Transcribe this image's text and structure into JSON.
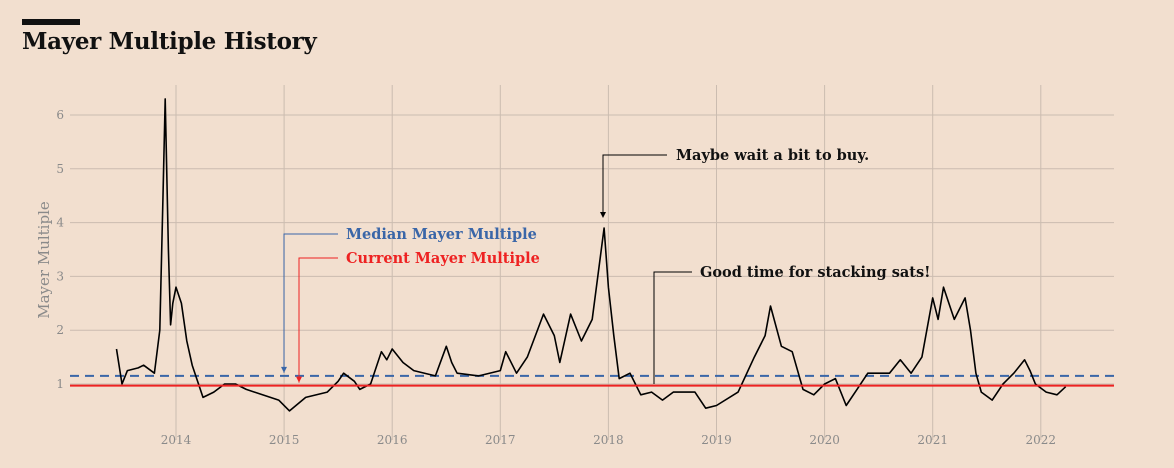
{
  "title": "Mayer Multiple History",
  "chart_data": {
    "type": "line",
    "title": "Mayer Multiple History",
    "xlabel": "",
    "ylabel": "Mayer Multiple",
    "xlim": [
      2013.0,
      2022.65
    ],
    "ylim": [
      0,
      6.5
    ],
    "grid": true,
    "x_ticks": [
      "2014",
      "2015",
      "2016",
      "2017",
      "2018",
      "2019",
      "2020",
      "2021",
      "2022"
    ],
    "y_ticks": [
      "1",
      "2",
      "3",
      "4",
      "5",
      "6"
    ],
    "colors": {
      "series": "#000000",
      "median": "#3a66a8",
      "current": "#ee2222",
      "grid": "#cbbcb0"
    },
    "series": [
      {
        "x": [
          2013.45,
          2013.5,
          2013.55,
          2013.65,
          2013.7,
          2013.8,
          2013.85,
          2013.88,
          2013.9,
          2013.93,
          2013.95,
          2013.97,
          2014.0,
          2014.05,
          2014.1,
          2014.15,
          2014.25,
          2014.35,
          2014.45,
          2014.55,
          2014.65,
          2014.8,
          2014.95,
          2015.05,
          2015.2,
          2015.4,
          2015.5,
          2015.55,
          2015.65,
          2015.7,
          2015.8,
          2015.9,
          2015.95,
          2016.0,
          2016.1,
          2016.2,
          2016.4,
          2016.5,
          2016.55,
          2016.6,
          2016.8,
          2017.0,
          2017.05,
          2017.15,
          2017.25,
          2017.4,
          2017.5,
          2017.55,
          2017.65,
          2017.75,
          2017.85,
          2017.96,
          2018.0,
          2018.05,
          2018.1,
          2018.2,
          2018.3,
          2018.4,
          2018.5,
          2018.6,
          2018.8,
          2018.9,
          2019.0,
          2019.2,
          2019.35,
          2019.45,
          2019.5,
          2019.6,
          2019.7,
          2019.8,
          2019.9,
          2020.0,
          2020.1,
          2020.2,
          2020.3,
          2020.4,
          2020.6,
          2020.7,
          2020.8,
          2020.9,
          2021.0,
          2021.05,
          2021.1,
          2021.2,
          2021.3,
          2021.35,
          2021.4,
          2021.45,
          2021.55,
          2021.65,
          2021.75,
          2021.85,
          2021.9,
          2021.95,
          2022.05,
          2022.15,
          2022.23
        ],
        "y": [
          1.65,
          1.0,
          1.25,
          1.3,
          1.35,
          1.2,
          2.0,
          4.5,
          6.3,
          3.5,
          2.1,
          2.5,
          2.8,
          2.5,
          1.8,
          1.35,
          0.75,
          0.85,
          1.0,
          1.0,
          0.9,
          0.8,
          0.7,
          0.5,
          0.75,
          0.85,
          1.05,
          1.2,
          1.05,
          0.9,
          1.0,
          1.6,
          1.45,
          1.65,
          1.4,
          1.25,
          1.15,
          1.7,
          1.4,
          1.2,
          1.15,
          1.25,
          1.6,
          1.2,
          1.5,
          2.3,
          1.9,
          1.4,
          2.3,
          1.8,
          2.2,
          3.9,
          2.8,
          1.9,
          1.1,
          1.2,
          0.8,
          0.85,
          0.7,
          0.85,
          0.85,
          0.55,
          0.6,
          0.85,
          1.5,
          1.9,
          2.45,
          1.7,
          1.6,
          0.9,
          0.8,
          1.0,
          1.1,
          0.6,
          0.9,
          1.2,
          1.2,
          1.45,
          1.2,
          1.5,
          2.6,
          2.2,
          2.8,
          2.2,
          2.6,
          2.0,
          1.2,
          0.85,
          0.7,
          1.0,
          1.2,
          1.45,
          1.25,
          1.0,
          0.85,
          0.8,
          0.95
        ]
      }
    ],
    "reference_lines": {
      "median": 1.15,
      "current": 0.97
    },
    "annotations": {
      "median_label": "Median Mayer Multiple",
      "current_label": "Current Mayer Multiple",
      "peak_note": "Maybe wait a bit to buy.",
      "low_note": "Good time for stacking sats!"
    }
  }
}
